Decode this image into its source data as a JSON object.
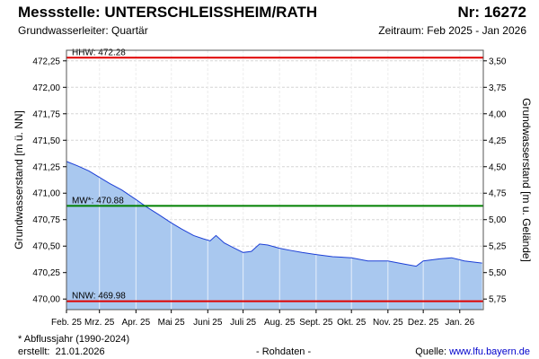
{
  "header": {
    "title": "Messstelle: UNTERSCHLEISSHEIM/RATH",
    "number": "Nr: 16272",
    "aquifer": "Grundwasserleiter: Quartär",
    "period": "Zeitraum: Feb 2025 - Jan 2026"
  },
  "footer": {
    "note": "* Abflussjahr (1990-2024)",
    "created_label": "erstellt:",
    "created_date": "21.01.2026",
    "raw": "- Rohdaten -",
    "source_label": "Quelle:",
    "source_link": "www.lfu.bayern.de"
  },
  "colors": {
    "area_fill": "#a9c8ef",
    "series_line": "#1c3fd6",
    "hhw_line": "#e00000",
    "nnw_line": "#e00000",
    "mw_line": "#008000",
    "grid": "#d6d6d6",
    "month_grid": "#ffffff"
  },
  "chart_data": {
    "type": "area",
    "ylabel": "Grundwasserstand [m ü. NN]",
    "ylabel_right": "Grundwasserstand [m u. Gelände]",
    "ylim": [
      469.9,
      472.35
    ],
    "yticks": [
      "470,00",
      "470,25",
      "470,50",
      "470,75",
      "471,00",
      "471,25",
      "471,50",
      "471,75",
      "472,00",
      "472,25"
    ],
    "yticks_values": [
      470.0,
      470.25,
      470.5,
      470.75,
      471.0,
      471.25,
      471.5,
      471.75,
      472.0,
      472.25
    ],
    "right_ticks": [
      "3,50",
      "3,75",
      "4,00",
      "4,25",
      "4,50",
      "4,75",
      "5,00",
      "5,25",
      "5,50",
      "5,75"
    ],
    "right_ticks_values": [
      472.25,
      472.0,
      471.75,
      471.5,
      471.25,
      471.0,
      470.75,
      470.5,
      470.25,
      470.0
    ],
    "xticks": [
      "Feb. 25",
      "Mrz. 25",
      "Apr. 25",
      "Mai 25",
      "Juni 25",
      "Juli 25",
      "Aug. 25",
      "Sept. 25",
      "Okt. 25",
      "Nov. 25",
      "Dez. 25",
      "Jan. 26"
    ],
    "xticks_values": [
      "2025-02-01",
      "2025-03-01",
      "2025-04-01",
      "2025-05-01",
      "2025-06-01",
      "2025-07-01",
      "2025-08-01",
      "2025-09-01",
      "2025-10-01",
      "2025-11-01",
      "2025-12-01",
      "2026-01-01"
    ],
    "x_range": [
      "2025-02-01",
      "2026-01-21"
    ],
    "grid": true,
    "reference_lines": [
      {
        "label": "HHW: 472.28",
        "value": 472.28
      },
      {
        "label": "MW*: 470.88",
        "value": 470.88
      },
      {
        "label": "NNW: 469.98",
        "value": 469.98
      }
    ],
    "series": [
      {
        "x": [
          "2025-02-01",
          "2025-02-10",
          "2025-02-20",
          "2025-03-01",
          "2025-03-10",
          "2025-03-20",
          "2025-04-01",
          "2025-04-10",
          "2025-04-20",
          "2025-05-01",
          "2025-05-10",
          "2025-05-20",
          "2025-05-28",
          "2025-06-03",
          "2025-06-08",
          "2025-06-15",
          "2025-06-22",
          "2025-07-01",
          "2025-07-08",
          "2025-07-15",
          "2025-07-22",
          "2025-08-01",
          "2025-08-10",
          "2025-08-20",
          "2025-09-01",
          "2025-09-15",
          "2025-10-01",
          "2025-10-15",
          "2025-11-01",
          "2025-11-15",
          "2025-11-25",
          "2025-12-01",
          "2025-12-15",
          "2025-12-25",
          "2026-01-05",
          "2026-01-20"
        ],
        "y": [
          471.3,
          471.26,
          471.21,
          471.15,
          471.09,
          471.03,
          470.94,
          470.87,
          470.8,
          470.72,
          470.66,
          470.6,
          470.57,
          470.55,
          470.6,
          470.53,
          470.49,
          470.44,
          470.45,
          470.52,
          470.51,
          470.48,
          470.46,
          470.44,
          470.42,
          470.4,
          470.39,
          470.36,
          470.36,
          470.33,
          470.31,
          470.36,
          470.38,
          470.39,
          470.36,
          470.34
        ]
      }
    ]
  }
}
